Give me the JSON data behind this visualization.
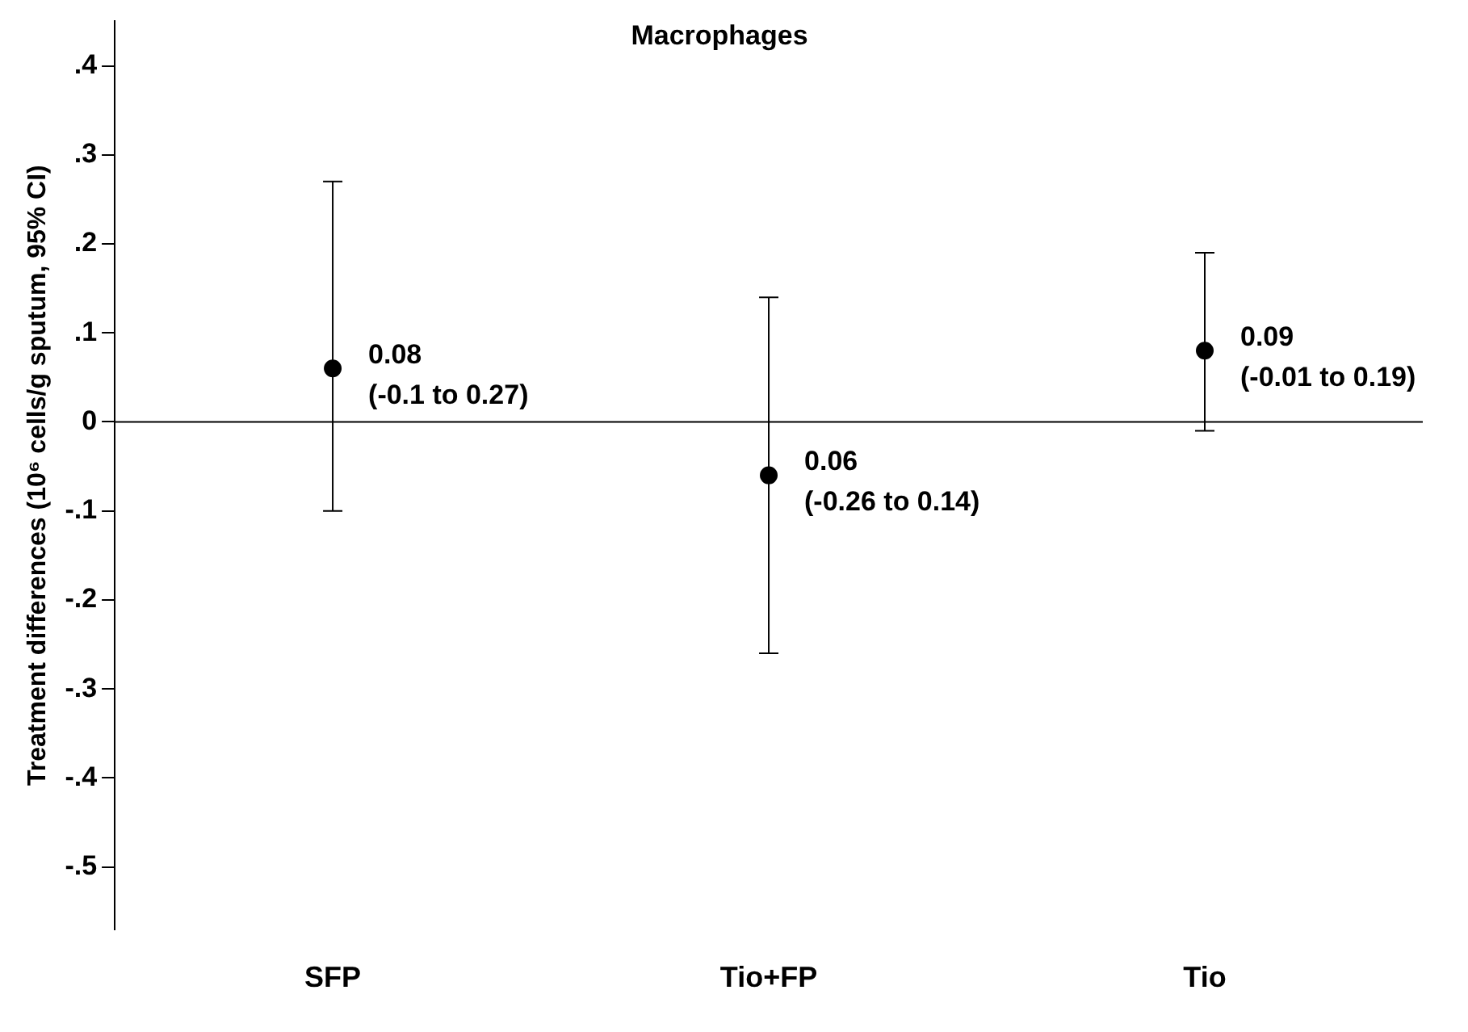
{
  "chart_data": {
    "type": "scatter",
    "title": "Macrophages",
    "ylabel": "Treatment differences (10⁶ cells/g sputum, 95% CI)",
    "categories": [
      "SFP",
      "Tio+FP",
      "Tio"
    ],
    "values": [
      0.06,
      -0.06,
      0.08
    ],
    "errors": [
      [
        -0.1,
        0.27
      ],
      [
        -0.26,
        0.14
      ],
      [
        -0.01,
        0.19
      ]
    ],
    "color": "#000000",
    "marker": "circle",
    "ylim": [
      -0.57,
      0.45
    ],
    "yticks": [
      {
        "value": 0.4,
        "label": ".4"
      },
      {
        "value": 0.3,
        "label": ".3"
      },
      {
        "value": 0.2,
        "label": ".2"
      },
      {
        "value": 0.1,
        "label": ".1"
      },
      0,
      {
        "value": -0.1,
        "label": "-.1"
      },
      {
        "value": -0.2,
        "label": "-.2"
      },
      {
        "value": -0.3,
        "label": "-.3"
      },
      {
        "value": -0.4,
        "label": "-.4"
      },
      {
        "value": -0.5,
        "label": "-.5"
      }
    ],
    "ref_lines": [
      {
        "axis": "y",
        "value": 0,
        "label": null
      }
    ],
    "grid": false,
    "legend": false,
    "annotations": [
      {
        "text": "0.08\n(-0.1 to 0.27)",
        "x": "SFP",
        "y": 0.06
      },
      {
        "text": "0.06\n(-0.26 to 0.14)",
        "x": "Tio+FP",
        "y": -0.06
      },
      {
        "text": "0.09\n(-0.01 to 0.19)",
        "x": "Tio",
        "y": 0.08
      }
    ]
  }
}
